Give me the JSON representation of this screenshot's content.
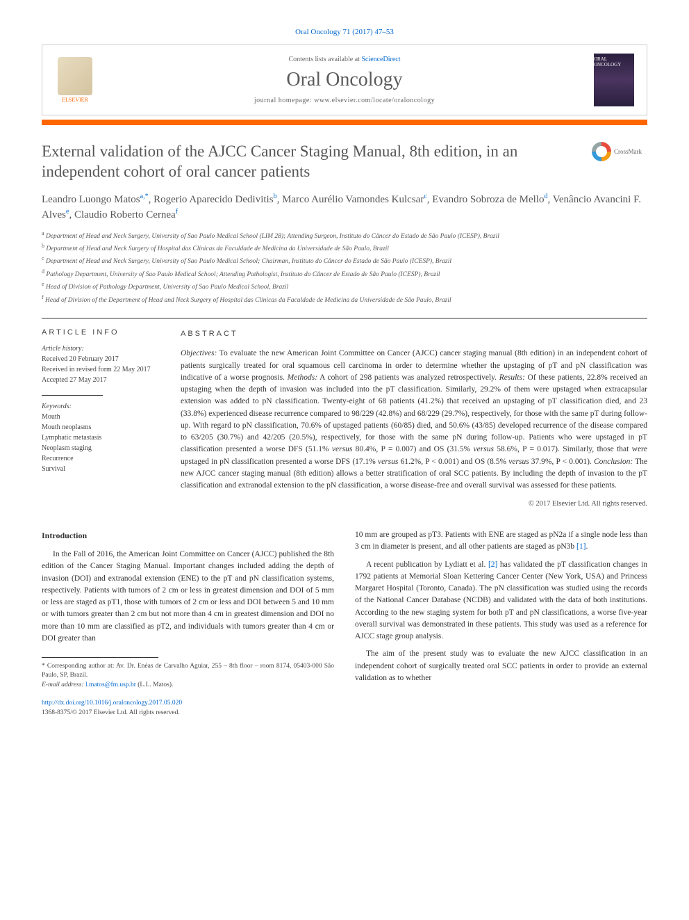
{
  "header": {
    "citation": "Oral Oncology 71 (2017) 47–53",
    "contents_prefix": "Contents lists available at ",
    "contents_link": "ScienceDirect",
    "journal_name": "Oral Oncology",
    "homepage_label": "journal homepage: ",
    "homepage_url": "www.elsevier.com/locate/oraloncology",
    "publisher_name": "ELSEVIER",
    "cover_text": "ORAL ONCOLOGY"
  },
  "colors": {
    "accent_orange": "#ff6600",
    "link_blue": "#0066cc",
    "text_gray": "#555555",
    "rule_gray": "#333333"
  },
  "article": {
    "title": "External validation of the AJCC Cancer Staging Manual, 8th edition, in an independent cohort of oral cancer patients",
    "crossmark_label": "CrossMark",
    "authors_html": "Leandro Luongo Matos<sup>a,*</sup>, Rogerio Aparecido Dedivitis<sup>b</sup>, Marco Aurélio Vamondes Kulcsar<sup>c</sup>, Evandro Sobroza de Mello<sup>d</sup>, Venâncio Avancini F. Alves<sup>e</sup>, Claudio Roberto Cernea<sup>f</sup>",
    "affiliations": [
      {
        "sup": "a",
        "text": "Department of Head and Neck Surgery, University of Sao Paulo Medical School (LIM 28); Attending Surgeon, Instituto do Câncer do Estado de São Paulo (ICESP), Brazil"
      },
      {
        "sup": "b",
        "text": "Department of Head and Neck Surgery of Hospital das Clínicas da Faculdade de Medicina da Universidade de São Paulo, Brazil"
      },
      {
        "sup": "c",
        "text": "Department of Head and Neck Surgery, University of Sao Paulo Medical School; Chairman, Instituto do Câncer do Estado de São Paulo (ICESP), Brazil"
      },
      {
        "sup": "d",
        "text": "Pathology Department, University of Sao Paulo Medical School; Attending Pathologist, Instituto do Câncer de Estado de São Paulo (ICESP), Brazil"
      },
      {
        "sup": "e",
        "text": "Head of Division of Pathology Department, University of Sao Paulo Medical School, Brazil"
      },
      {
        "sup": "f",
        "text": "Head of Division of the Department of Head and Neck Surgery of Hospital das Clínicas da Faculdade de Medicina da Universidade de São Paulo, Brazil"
      }
    ]
  },
  "info": {
    "heading": "ARTICLE INFO",
    "history_label": "Article history:",
    "history": [
      "Received 20 February 2017",
      "Received in revised form 22 May 2017",
      "Accepted 27 May 2017"
    ],
    "keywords_label": "Keywords:",
    "keywords": [
      "Mouth",
      "Mouth neoplasms",
      "Lymphatic metastasis",
      "Neoplasm staging",
      "Recurrence",
      "Survival"
    ]
  },
  "abstract": {
    "heading": "ABSTRACT",
    "text": "Objectives: To evaluate the new American Joint Committee on Cancer (AJCC) cancer staging manual (8th edition) in an independent cohort of patients surgically treated for oral squamous cell carcinoma in order to determine whether the upstaging of pT and pN classification was indicative of a worse prognosis. Methods: A cohort of 298 patients was analyzed retrospectively. Results: Of these patients, 22.8% received an upstaging when the depth of invasion was included into the pT classification. Similarly, 29.2% of them were upstaged when extracapsular extension was added to pN classification. Twenty-eight of 68 patients (41.2%) that received an upstaging of pT classification died, and 23 (33.8%) experienced disease recurrence compared to 98/229 (42.8%) and 68/229 (29.7%), respectively, for those with the same pT during follow-up. With regard to pN classification, 70.6% of upstaged patients (60/85) died, and 50.6% (43/85) developed recurrence of the disease compared to 63/205 (30.7%) and 42/205 (20.5%), respectively, for those with the same pN during follow-up. Patients who were upstaged in pT classification presented a worse DFS (51.1% versus 80.4%, P = 0.007) and OS (31.5% versus 58.6%, P = 0.017). Similarly, those that were upstaged in pN classification presented a worse DFS (17.1% versus 61.2%, P < 0.001) and OS (8.5% versus 37.9%, P < 0.001). Conclusion: The new AJCC cancer staging manual (8th edition) allows a better stratification of oral SCC patients. By including the depth of invasion to the pT classification and extranodal extension to the pN classification, a worse disease-free and overall survival was assessed for these patients.",
    "copyright": "© 2017 Elsevier Ltd. All rights reserved."
  },
  "body": {
    "intro_heading": "Introduction",
    "col1_p1": "In the Fall of 2016, the American Joint Committee on Cancer (AJCC) published the 8th edition of the Cancer Staging Manual. Important changes included adding the depth of invasion (DOI) and extranodal extension (ENE) to the pT and pN classification systems, respectively. Patients with tumors of 2 cm or less in greatest dimension and DOI of 5 mm or less are staged as pT1, those with tumors of 2 cm or less and DOI between 5 and 10 mm or with tumors greater than 2 cm but not more than 4 cm in greatest dimension and DOI no more than 10 mm are classified as pT2, and individuals with tumors greater than 4 cm or DOI greater than",
    "col2_p1_prefix": "10 mm are grouped as pT3. Patients with ENE are staged as pN2a if a single node less than 3 cm in diameter is present, and all other patients are staged as pN3b ",
    "col2_p1_ref": "[1]",
    "col2_p1_suffix": ".",
    "col2_p2_prefix": "A recent publication by Lydiatt et al. ",
    "col2_p2_ref": "[2]",
    "col2_p2_suffix": " has validated the pT classification changes in 1792 patients at Memorial Sloan Kettering Cancer Center (New York, USA) and Princess Margaret Hospital (Toronto, Canada). The pN classification was studied using the records of the National Cancer Database (NCDB) and validated with the data of both institutions. According to the new staging system for both pT and pN classifications, a worse five-year overall survival was demonstrated in these patients. This study was used as a reference for AJCC stage group analysis.",
    "col2_p3": "The aim of the present study was to evaluate the new AJCC classification in an independent cohort of surgically treated oral SCC patients in order to provide an external validation as to whether"
  },
  "footnotes": {
    "corresponding_label": "* Corresponding author at: ",
    "corresponding_text": "Av. Dr. Enéas de Carvalho Aguiar, 255 – 8th floor – room 8174, 05403-000 São Paulo, SP, Brazil.",
    "email_label": "E-mail address: ",
    "email": "l.matos@fm.usp.br",
    "email_author": " (L.L. Matos)."
  },
  "doi": {
    "url": "http://dx.doi.org/10.1016/j.oraloncology.2017.05.020",
    "issn_line": "1368-8375/© 2017 Elsevier Ltd. All rights reserved."
  }
}
